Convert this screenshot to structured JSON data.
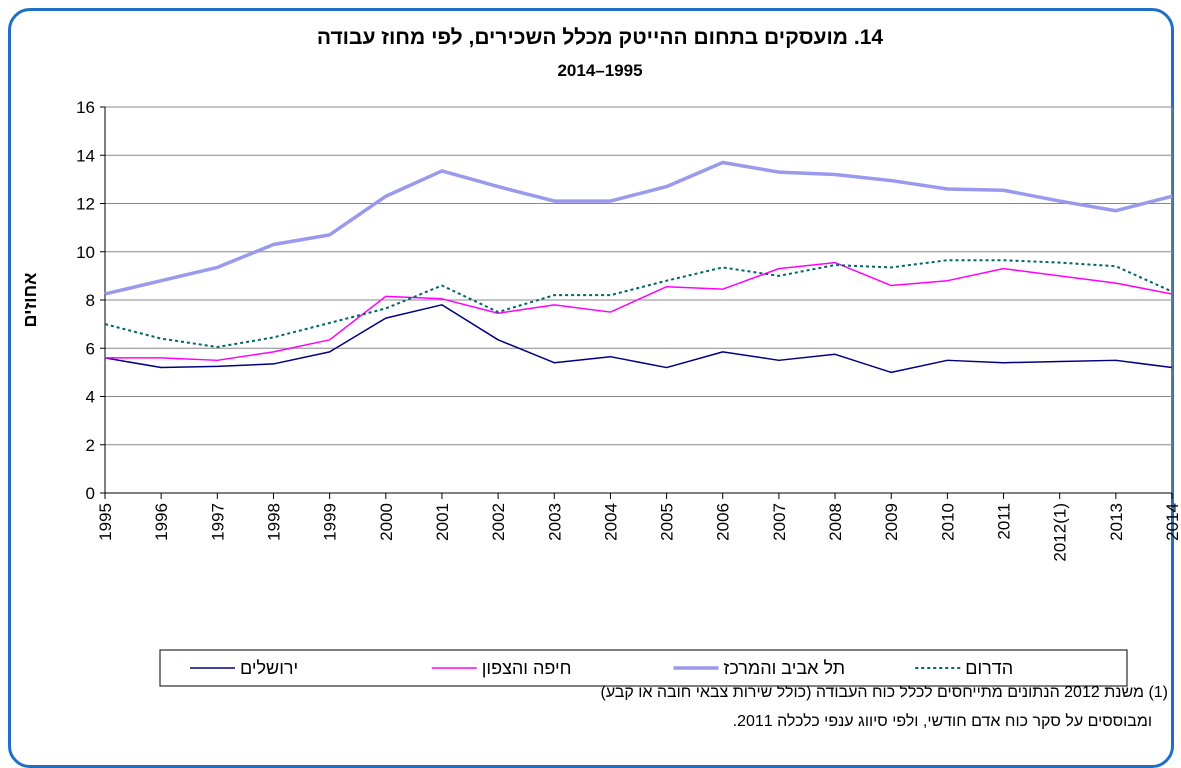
{
  "chart_data": {
    "type": "line",
    "title": "14. מועסקים בתחום ההייטק מכלל השכירים, לפי מחוז עבודה",
    "subtitle": "2014–1995",
    "y_label": "אחוזים",
    "categories": [
      "1995",
      "1996",
      "1997",
      "1998",
      "1999",
      "2000",
      "2001",
      "2002",
      "2003",
      "2004",
      "2005",
      "2006",
      "2007",
      "2008",
      "2009",
      "2010",
      "2011",
      "2012(1)",
      "2013",
      "2014"
    ],
    "series": [
      {
        "name": "ירושלים",
        "color": "#000080",
        "style": "solid",
        "width": 1.5,
        "values": [
          5.6,
          5.2,
          5.25,
          5.35,
          5.85,
          7.25,
          7.8,
          6.35,
          5.4,
          5.65,
          5.2,
          5.85,
          5.5,
          5.75,
          5.0,
          5.5,
          5.4,
          5.45,
          5.5,
          5.2
        ]
      },
      {
        "name": "חיפה והצפון",
        "color": "#ff00ff",
        "style": "solid",
        "width": 1.5,
        "values": [
          5.6,
          5.6,
          5.5,
          5.85,
          6.35,
          8.15,
          8.05,
          7.45,
          7.8,
          7.5,
          8.55,
          8.45,
          9.3,
          9.55,
          8.6,
          8.8,
          9.3,
          9.0,
          8.7,
          8.25
        ]
      },
      {
        "name": "תל אביב והמרכז",
        "color": "#9999ee",
        "style": "solid",
        "width": 3.5,
        "values": [
          8.25,
          8.8,
          9.35,
          10.3,
          10.7,
          12.3,
          13.35,
          12.7,
          12.1,
          12.1,
          12.7,
          13.7,
          13.3,
          13.2,
          12.95,
          12.6,
          12.55,
          12.1,
          11.7,
          12.3
        ]
      },
      {
        "name": "הדרום",
        "color": "#006666",
        "style": "dotted",
        "width": 2,
        "values": [
          7.0,
          6.4,
          6.05,
          6.45,
          7.05,
          7.65,
          8.6,
          7.5,
          8.2,
          8.2,
          8.8,
          9.35,
          9.0,
          9.45,
          9.35,
          9.65,
          9.65,
          9.55,
          9.4,
          8.35
        ]
      }
    ],
    "ylim": [
      0,
      16
    ],
    "yticks": [
      0,
      2,
      4,
      6,
      8,
      10,
      12,
      14,
      16
    ],
    "grid": true,
    "legend": "bottom",
    "footnote": [
      "(1) משנת 2012 הנתונים מתייחסים לכלל כוח העבודה (כולל שירות צבאי חובה או קבע)",
      "ומבוססים על סקר כוח אדם חודשי, ולפי סיווג ענפי כלכלה 2011."
    ]
  }
}
